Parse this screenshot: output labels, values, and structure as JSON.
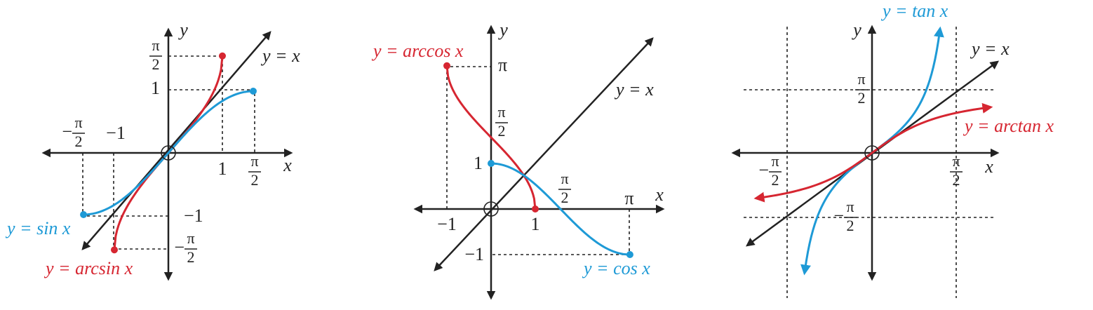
{
  "panels": [
    {
      "labels": [
        {
          "text": "y"
        },
        {
          "text": "x"
        },
        {
          "num": "π",
          "den": "2"
        },
        {
          "text": "1"
        },
        {
          "sign": "−",
          "num": "π",
          "den": "2"
        },
        {
          "text": "−1"
        },
        {
          "text": "1"
        },
        {
          "num": "π",
          "den": "2"
        },
        {
          "text": "−1"
        },
        {
          "sign": "−",
          "num": "π",
          "den": "2"
        },
        {
          "text": "y = x"
        },
        {
          "text": "y = sin x"
        },
        {
          "text": "y = arcsin x"
        }
      ]
    },
    {
      "labels": [
        {
          "text": "y"
        },
        {
          "text": "x"
        },
        {
          "text": "π"
        },
        {
          "num": "π",
          "den": "2"
        },
        {
          "text": "1"
        },
        {
          "num": "π",
          "den": "2"
        },
        {
          "text": "π"
        },
        {
          "text": "−1"
        },
        {
          "text": "1"
        },
        {
          "text": "−1"
        },
        {
          "text": "y = x"
        },
        {
          "text": "y = arccos x"
        },
        {
          "text": "y = cos x"
        }
      ]
    },
    {
      "labels": [
        {
          "text": "y"
        },
        {
          "text": "x"
        },
        {
          "num": "π",
          "den": "2"
        },
        {
          "sign": "−",
          "num": "π",
          "den": "2"
        },
        {
          "num": "π",
          "den": "2"
        },
        {
          "sign": "−",
          "num": "π",
          "den": "2"
        },
        {
          "text": "y = x"
        },
        {
          "text": "y = tan x"
        },
        {
          "text": "y = arctan x"
        }
      ]
    }
  ]
}
